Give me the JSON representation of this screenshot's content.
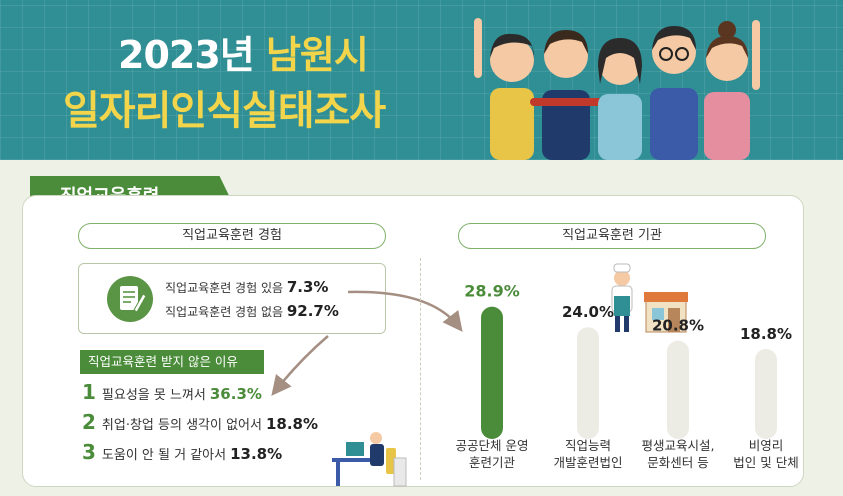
{
  "header": {
    "year": "2023년",
    "city": "남원시",
    "title": "일자리인식실태조사"
  },
  "section": {
    "title": "직업교육훈련"
  },
  "experience": {
    "pill_label": "직업교육훈련 경험",
    "yes_label": "직업교육훈련 경험 있음",
    "yes_value": "7.3%",
    "no_label": "직업교육훈련 경험 없음",
    "no_value": "92.7%"
  },
  "reasons": {
    "title": "직업교육훈련 받지 않은 이유",
    "items": [
      {
        "rank": "1",
        "label": "필요성을 못 느껴서",
        "value": "36.3%"
      },
      {
        "rank": "2",
        "label": "취업·창업 등의 생각이 없어서",
        "value": "18.8%"
      },
      {
        "rank": "3",
        "label": "도움이 안 될 거 같아서",
        "value": "13.8%"
      }
    ]
  },
  "institution": {
    "pill_label": "직업교육훈련 기관"
  },
  "colors": {
    "accent_green": "#4b8c3a",
    "header_teal": "#2f8f95",
    "title_yellow": "#f2d54a",
    "bar_gray": "#ecebe4"
  },
  "chart_data": {
    "type": "bar",
    "categories": [
      [
        "공공단체 운영",
        "훈련기관"
      ],
      [
        "직업능력",
        "개발훈련법인"
      ],
      [
        "평생교육시설,",
        "문화센터 등"
      ],
      [
        "비영리",
        "법인 및 단체"
      ]
    ],
    "values": [
      28.9,
      24.0,
      20.8,
      18.8
    ],
    "value_labels": [
      "28.9%",
      "24.0%",
      "20.8%",
      "18.8%"
    ],
    "ylim": [
      0,
      30
    ],
    "grid": false,
    "highlight_index": 0
  }
}
